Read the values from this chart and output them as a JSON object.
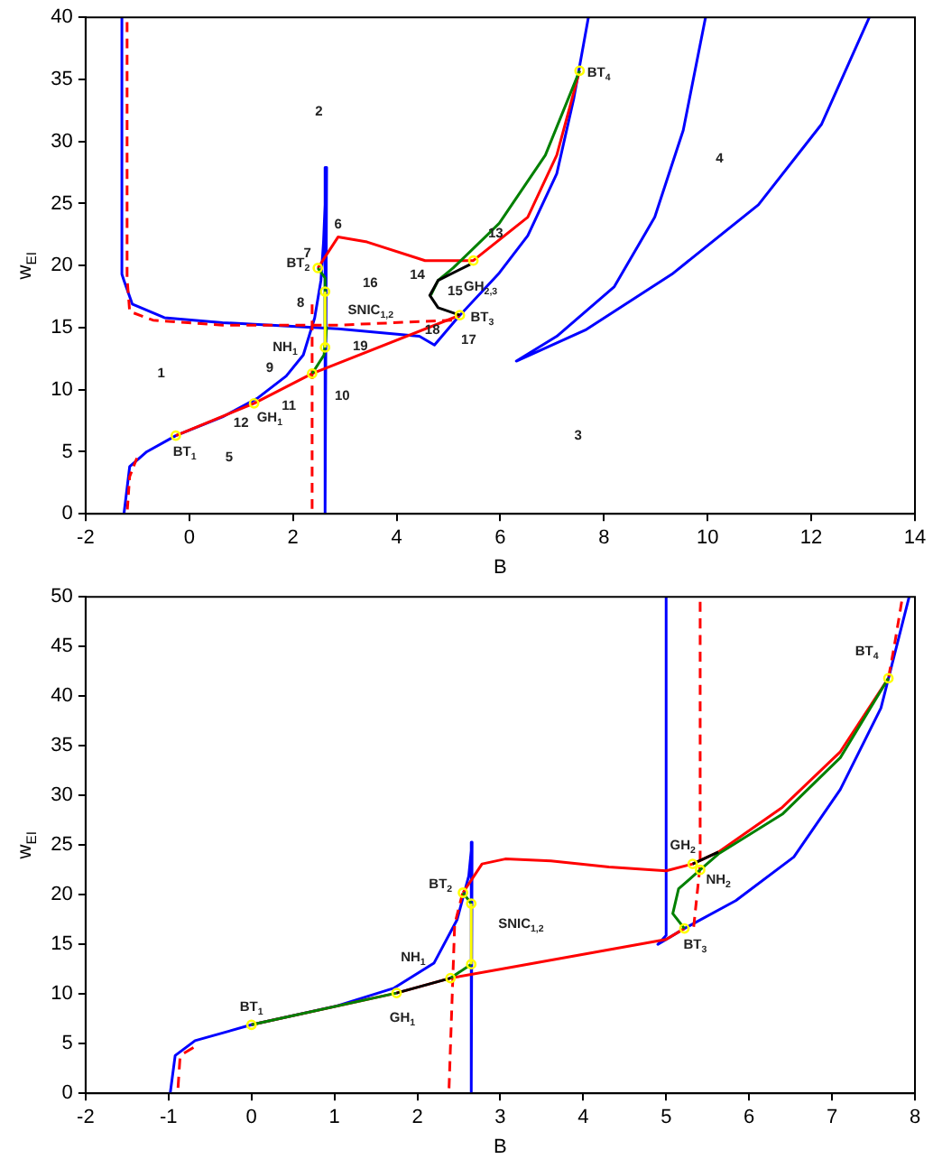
{
  "chart_data": [
    {
      "type": "line",
      "xlabel": "B",
      "ylabel": "w$_{EI}$",
      "xlim": [
        -2,
        14
      ],
      "xticks": [
        -2,
        0,
        2,
        4,
        6,
        8,
        10,
        12,
        14
      ],
      "ylim": [
        0,
        40
      ],
      "yticks": [
        0,
        5,
        10,
        15,
        20,
        25,
        30,
        35,
        40
      ],
      "series": [
        {
          "type": "line",
          "color": "#0000ff",
          "x": [
            -1.26,
            -1.15,
            -0.82,
            -0.26,
            0.64,
            1.31,
            1.87,
            2.2,
            2.42,
            2.54,
            2.59,
            2.65,
            2.62
          ],
          "values": [
            0,
            3.8,
            5.0,
            6.3,
            7.8,
            9.3,
            11.1,
            12.8,
            15.8,
            18.8,
            21.9,
            27.9,
            0
          ]
        },
        {
          "type": "line",
          "color": "#0000ff",
          "x": [
            -1.3,
            -1.3,
            -1.26,
            -1.1,
            -0.48,
            0.64,
            2.87,
            4.44,
            4.73,
            5.2,
            5.98,
            6.53,
            7.09,
            7.42,
            7.7
          ],
          "values": [
            40,
            19.3,
            18.8,
            16.9,
            15.8,
            15.4,
            14.9,
            14.3,
            13.6,
            15.9,
            19.4,
            22.4,
            27.4,
            33.5,
            40
          ]
        },
        {
          "type": "line",
          "color": "#0000ff",
          "x": [
            9.96,
            9.53,
            8.98,
            8.2,
            7.09,
            6.31,
            7.64,
            9.31,
            10.98,
            12.2,
            13.12
          ],
          "values": [
            40,
            30.9,
            23.9,
            18.3,
            14.3,
            12.3,
            14.8,
            19.3,
            24.9,
            31.4,
            40
          ]
        },
        {
          "type": "line",
          "color": "#ff0000",
          "line_style": "dashed",
          "x": [
            -1.2,
            -1.2,
            -1.15,
            -0.7,
            0.64,
            2.87,
            5.1
          ],
          "values": [
            40,
            19.0,
            16.3,
            15.6,
            15.2,
            15.2,
            15.6
          ]
        },
        {
          "type": "line",
          "color": "#ff0000",
          "line_style": "dashed",
          "x": [
            -1.2,
            -1.15,
            -1.0
          ],
          "values": [
            0,
            3,
            4.6
          ]
        },
        {
          "type": "line",
          "color": "#ff0000",
          "line_style": "dashed",
          "x": [
            2.37,
            2.37
          ],
          "values": [
            0,
            17
          ]
        },
        {
          "type": "line",
          "color": "#ff0000",
          "x": [
            -0.26,
            1.25,
            2.37,
            5.22
          ],
          "values": [
            6.3,
            8.9,
            11.3,
            16.0
          ]
        },
        {
          "type": "line",
          "color": "#ff0000",
          "x": [
            2.48,
            2.87,
            3.43,
            4.55,
            5.48,
            6.53,
            7.09,
            7.53
          ],
          "values": [
            19.8,
            22.3,
            21.9,
            20.4,
            20.4,
            23.9,
            28.9,
            35.7
          ]
        },
        {
          "type": "line",
          "color": "#008000",
          "x": [
            2.37,
            2.6,
            2.65,
            2.62,
            2.48
          ],
          "values": [
            11.3,
            12.8,
            15,
            19,
            19.8
          ]
        },
        {
          "type": "line",
          "color": "#008000",
          "x": [
            4.66,
            4.8,
            5.09,
            5.98,
            6.87,
            7.53
          ],
          "values": [
            17.6,
            18.8,
            19.8,
            23.4,
            28.9,
            35.7
          ]
        },
        {
          "type": "line",
          "color": "#000000",
          "x": [
            5.22,
            4.8,
            4.64,
            4.8,
            5.42
          ],
          "values": [
            16.0,
            16.6,
            17.6,
            18.8,
            20.1
          ]
        },
        {
          "type": "line",
          "color": "#ffff00",
          "x": [
            2.62,
            2.62
          ],
          "values": [
            13.4,
            17.9
          ]
        },
        {
          "type": "scatter",
          "marker": "circle",
          "color": "#ffff00",
          "x": [
            -0.26,
            1.25,
            2.37,
            2.62,
            2.62,
            2.48,
            5.22,
            5.48,
            7.53
          ],
          "values": [
            6.3,
            8.9,
            11.3,
            13.4,
            17.9,
            19.8,
            16.0,
            20.4,
            35.7
          ]
        }
      ],
      "annotations": [
        "1",
        "2",
        "3",
        "4",
        "5",
        "6",
        "7",
        "8",
        "9",
        "10",
        "11",
        "12",
        "13",
        "14",
        "15",
        "16",
        "17",
        "18",
        "19",
        "BT$_{1}$",
        "GH$_{1}$",
        "NH$_{1}$",
        "BT$_{2}$",
        "SNIC$_{1,2}$",
        "GH$_{2,3}$",
        "BT$_{3}$",
        "BT$_{4}$"
      ]
    },
    {
      "type": "line",
      "xlabel": "B",
      "ylabel": "w$_{EI}$",
      "xlim": [
        -2,
        8
      ],
      "xticks": [
        -2,
        -1,
        0,
        1,
        2,
        3,
        4,
        5,
        6,
        7,
        8
      ],
      "ylim": [
        0,
        50
      ],
      "yticks": [
        0,
        5,
        10,
        15,
        20,
        25,
        30,
        35,
        40,
        45,
        50
      ],
      "series": [
        {
          "type": "line",
          "color": "#0000ff",
          "x": [
            -0.98,
            -0.92,
            -0.68,
            0,
            1.03,
            1.72,
            2.2,
            2.48,
            2.62,
            2.66,
            2.65
          ],
          "values": [
            0,
            3.8,
            5.3,
            6.9,
            8.8,
            10.6,
            13.1,
            17.5,
            21.9,
            25.3,
            0
          ]
        },
        {
          "type": "line",
          "color": "#0000ff",
          "x": [
            5.0,
            5.0,
            4.9,
            5.22,
            5.84,
            6.54,
            7.1,
            7.59,
            7.93
          ],
          "values": [
            50,
            15.9,
            15.0,
            16.6,
            19.4,
            23.8,
            30.6,
            38.8,
            50
          ]
        },
        {
          "type": "line",
          "color": "#ff0000",
          "line_style": "dashed",
          "x": [
            -0.89,
            -0.86,
            -0.68
          ],
          "values": [
            0,
            3.8,
            4.7
          ]
        },
        {
          "type": "line",
          "color": "#ff0000",
          "line_style": "dashed",
          "x": [
            2.38,
            2.45,
            2.55
          ],
          "values": [
            0,
            17,
            20.3
          ]
        },
        {
          "type": "line",
          "color": "#ff0000",
          "line_style": "dashed",
          "x": [
            5.41,
            5.41,
            5.33
          ],
          "values": [
            50,
            23,
            16.6
          ]
        },
        {
          "type": "line",
          "color": "#ff0000",
          "line_style": "dashed",
          "x": [
            7.85,
            7.75,
            7.68
          ],
          "values": [
            50,
            45,
            41.8
          ]
        },
        {
          "type": "line",
          "color": "#ff0000",
          "x": [
            0,
            1.75,
            2.4,
            3,
            5.0,
            5.22
          ],
          "values": [
            6.9,
            10.1,
            11.6,
            12.5,
            15.5,
            16.6
          ]
        },
        {
          "type": "line",
          "color": "#ff0000",
          "x": [
            2.55,
            2.78,
            3.06,
            3.61,
            4.31,
            5.0,
            5.32,
            5.63,
            6.4,
            7.1,
            7.68
          ],
          "values": [
            20.2,
            23.1,
            23.6,
            23.4,
            22.8,
            22.4,
            23.1,
            24.3,
            28.8,
            34.4,
            41.8
          ]
        },
        {
          "type": "line",
          "color": "#008000",
          "x": [
            0,
            1.75
          ],
          "values": [
            6.9,
            10.1
          ]
        },
        {
          "type": "line",
          "color": "#008000",
          "x": [
            2.4,
            2.65
          ],
          "values": [
            11.6,
            13.0
          ]
        },
        {
          "type": "line",
          "color": "#008000",
          "x": [
            2.65,
            2.55
          ],
          "values": [
            19.1,
            20.2
          ]
        },
        {
          "type": "line",
          "color": "#008000",
          "x": [
            5.22,
            5.08,
            5.15,
            5.41,
            5.63,
            6.4,
            7.1,
            7.68
          ],
          "values": [
            16.6,
            18.1,
            20.6,
            22.5,
            24.1,
            28.1,
            33.8,
            41.8
          ]
        },
        {
          "type": "line",
          "color": "#000000",
          "x": [
            1.75,
            2.4
          ],
          "values": [
            10.1,
            11.6
          ]
        },
        {
          "type": "line",
          "color": "#000000",
          "x": [
            5.32,
            5.63
          ],
          "values": [
            23.1,
            24.3
          ]
        },
        {
          "type": "line",
          "color": "#ffff00",
          "x": [
            2.65,
            2.65
          ],
          "values": [
            13.0,
            19.1
          ]
        },
        {
          "type": "scatter",
          "marker": "circle",
          "color": "#ffff00",
          "x": [
            0,
            1.75,
            2.4,
            2.65,
            2.65,
            2.55,
            5.22,
            5.32,
            5.41,
            7.68
          ],
          "values": [
            6.9,
            10.1,
            11.6,
            13.0,
            19.1,
            20.2,
            16.6,
            23.1,
            22.5,
            41.8
          ]
        }
      ],
      "annotations": [
        "BT$_{1}$",
        "GH$_{1}$",
        "NH$_{1}$",
        "BT$_{2}$",
        "SNIC$_{1,2}$",
        "GH$_{2}$",
        "NH$_{2}$",
        "BT$_{3}$",
        "BT$_{4}$"
      ]
    }
  ]
}
